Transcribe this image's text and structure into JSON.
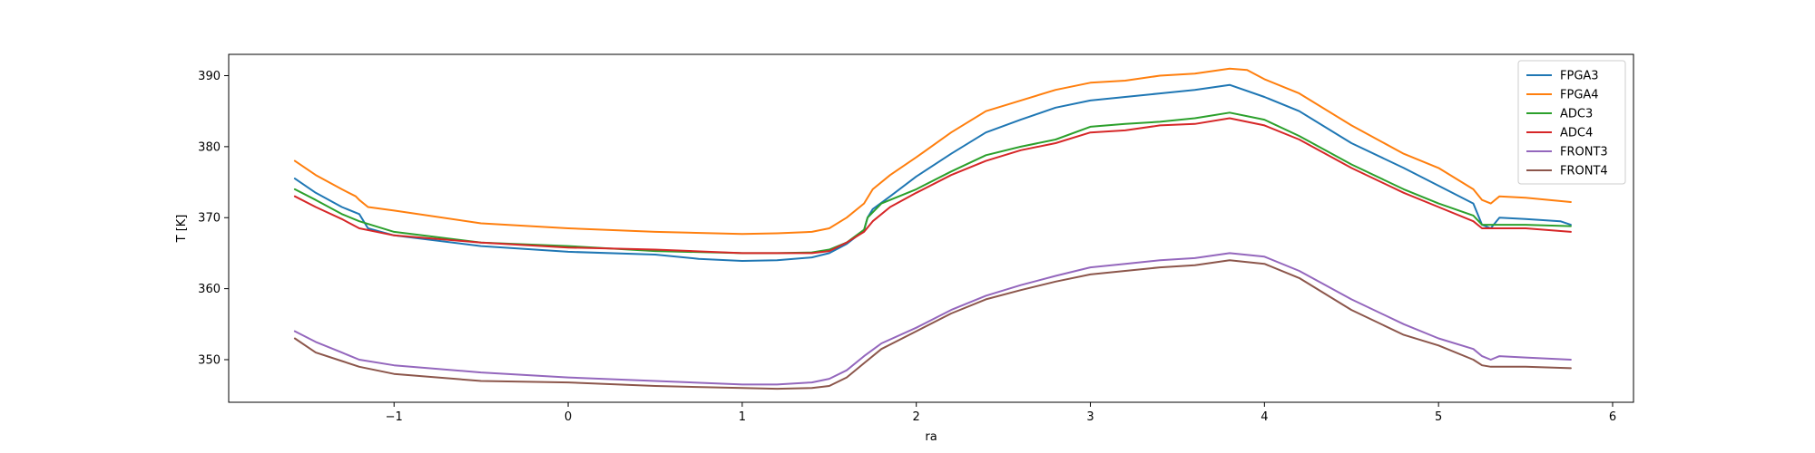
{
  "chart_data": {
    "type": "line",
    "title": "",
    "xlabel": "ra",
    "ylabel": "T [K]",
    "xlim": [
      -1.95,
      6.12
    ],
    "ylim": [
      344,
      393
    ],
    "xticks": [
      -1,
      0,
      1,
      2,
      3,
      4,
      5,
      6
    ],
    "yticks": [
      350,
      360,
      370,
      380,
      390
    ],
    "grid": false,
    "legend": "top-right",
    "series": [
      {
        "name": "FPGA3",
        "color": "#1f77b4",
        "x": [
          -1.57,
          -1.45,
          -1.3,
          -1.2,
          -1.15,
          -1.0,
          -0.5,
          0.0,
          0.5,
          0.75,
          1.0,
          1.2,
          1.4,
          1.5,
          1.6,
          1.7,
          1.72,
          1.75,
          1.85,
          2.0,
          2.2,
          2.4,
          2.6,
          2.8,
          3.0,
          3.2,
          3.4,
          3.6,
          3.8,
          4.0,
          4.2,
          4.5,
          4.8,
          5.0,
          5.2,
          5.25,
          5.3,
          5.35,
          5.5,
          5.7,
          5.76
        ],
        "y": [
          375.5,
          373.5,
          371.5,
          370.5,
          368.5,
          367.5,
          366.0,
          365.2,
          364.8,
          364.2,
          363.9,
          364.0,
          364.4,
          365.0,
          366.3,
          368.2,
          370.0,
          371.2,
          373.0,
          375.8,
          379.0,
          382.0,
          383.8,
          385.5,
          386.5,
          387.0,
          387.5,
          388.0,
          388.7,
          387.0,
          385.0,
          380.5,
          377.0,
          374.5,
          372.0,
          369.0,
          368.5,
          370.0,
          369.8,
          369.5,
          369.0
        ]
      },
      {
        "name": "FPGA4",
        "color": "#ff7f0e",
        "x": [
          -1.57,
          -1.45,
          -1.3,
          -1.22,
          -1.2,
          -1.15,
          -1.0,
          -0.5,
          0.0,
          0.5,
          1.0,
          1.2,
          1.4,
          1.5,
          1.6,
          1.7,
          1.75,
          1.85,
          2.0,
          2.2,
          2.4,
          2.6,
          2.8,
          3.0,
          3.2,
          3.4,
          3.6,
          3.8,
          3.9,
          4.0,
          4.2,
          4.5,
          4.8,
          5.0,
          5.2,
          5.25,
          5.3,
          5.35,
          5.5,
          5.76
        ],
        "y": [
          378.0,
          376.0,
          374.0,
          373.0,
          372.5,
          371.5,
          371.0,
          369.2,
          368.5,
          368.0,
          367.7,
          367.8,
          368.0,
          368.5,
          370.0,
          372.0,
          374.0,
          376.0,
          378.5,
          382.0,
          385.0,
          386.5,
          388.0,
          389.0,
          389.3,
          390.0,
          390.3,
          391.0,
          390.8,
          389.5,
          387.5,
          383.0,
          379.0,
          377.0,
          374.0,
          372.5,
          372.0,
          373.0,
          372.8,
          372.2
        ]
      },
      {
        "name": "ADC3",
        "color": "#2ca02c",
        "x": [
          -1.57,
          -1.45,
          -1.3,
          -1.2,
          -1.0,
          -0.5,
          0.0,
          0.5,
          1.0,
          1.2,
          1.4,
          1.5,
          1.6,
          1.7,
          1.72,
          1.8,
          2.0,
          2.2,
          2.4,
          2.6,
          2.8,
          3.0,
          3.2,
          3.4,
          3.6,
          3.8,
          4.0,
          4.2,
          4.5,
          4.8,
          5.0,
          5.2,
          5.25,
          5.3,
          5.5,
          5.76
        ],
        "y": [
          374.0,
          372.5,
          370.5,
          369.5,
          368.0,
          366.5,
          366.0,
          365.3,
          365.0,
          365.0,
          365.1,
          365.5,
          366.5,
          368.3,
          370.0,
          372.0,
          374.0,
          376.5,
          378.8,
          380.0,
          381.0,
          382.8,
          383.2,
          383.5,
          384.0,
          384.8,
          383.8,
          381.5,
          377.5,
          374.0,
          372.0,
          370.3,
          369.0,
          369.0,
          369.0,
          368.8
        ]
      },
      {
        "name": "ADC4",
        "color": "#d62728",
        "x": [
          -1.57,
          -1.45,
          -1.3,
          -1.2,
          -1.0,
          -0.5,
          0.0,
          0.5,
          1.0,
          1.2,
          1.4,
          1.5,
          1.6,
          1.7,
          1.75,
          1.85,
          2.0,
          2.2,
          2.4,
          2.6,
          2.8,
          3.0,
          3.2,
          3.4,
          3.6,
          3.8,
          4.0,
          4.2,
          4.5,
          4.8,
          5.0,
          5.2,
          5.25,
          5.3,
          5.5,
          5.76
        ],
        "y": [
          373.0,
          371.5,
          369.8,
          368.5,
          367.5,
          366.5,
          365.8,
          365.5,
          365.0,
          365.0,
          365.0,
          365.3,
          366.5,
          368.0,
          369.5,
          371.5,
          373.5,
          376.0,
          378.0,
          379.5,
          380.5,
          382.0,
          382.3,
          383.0,
          383.2,
          384.0,
          383.0,
          381.0,
          377.0,
          373.5,
          371.5,
          369.5,
          368.5,
          368.5,
          368.5,
          368.0
        ]
      },
      {
        "name": "FRONT3",
        "color": "#9467bd",
        "x": [
          -1.57,
          -1.45,
          -1.3,
          -1.2,
          -1.0,
          -0.5,
          0.0,
          0.5,
          1.0,
          1.2,
          1.4,
          1.5,
          1.6,
          1.7,
          1.8,
          2.0,
          2.2,
          2.4,
          2.6,
          2.8,
          3.0,
          3.2,
          3.4,
          3.6,
          3.8,
          4.0,
          4.2,
          4.5,
          4.8,
          5.0,
          5.2,
          5.25,
          5.3,
          5.35,
          5.5,
          5.76
        ],
        "y": [
          354.0,
          352.5,
          351.0,
          350.0,
          349.2,
          348.2,
          347.5,
          347.0,
          346.5,
          346.5,
          346.8,
          347.3,
          348.5,
          350.5,
          352.3,
          354.5,
          357.0,
          359.0,
          360.5,
          361.8,
          363.0,
          363.5,
          364.0,
          364.3,
          365.0,
          364.5,
          362.5,
          358.5,
          355.0,
          353.0,
          351.5,
          350.5,
          350.0,
          350.5,
          350.3,
          350.0
        ]
      },
      {
        "name": "FRONT4",
        "color": "#8c564b",
        "x": [
          -1.57,
          -1.45,
          -1.3,
          -1.2,
          -1.0,
          -0.5,
          0.0,
          0.5,
          1.0,
          1.2,
          1.4,
          1.5,
          1.6,
          1.7,
          1.8,
          2.0,
          2.2,
          2.4,
          2.6,
          2.8,
          3.0,
          3.2,
          3.4,
          3.6,
          3.8,
          4.0,
          4.2,
          4.5,
          4.8,
          5.0,
          5.2,
          5.25,
          5.3,
          5.5,
          5.76
        ],
        "y": [
          353.0,
          351.0,
          349.8,
          349.0,
          348.0,
          347.0,
          346.8,
          346.3,
          346.0,
          345.9,
          346.0,
          346.3,
          347.5,
          349.5,
          351.5,
          354.0,
          356.5,
          358.5,
          359.8,
          361.0,
          362.0,
          362.5,
          363.0,
          363.3,
          364.0,
          363.5,
          361.5,
          357.0,
          353.5,
          352.0,
          350.0,
          349.2,
          349.0,
          349.0,
          348.8
        ]
      }
    ]
  }
}
